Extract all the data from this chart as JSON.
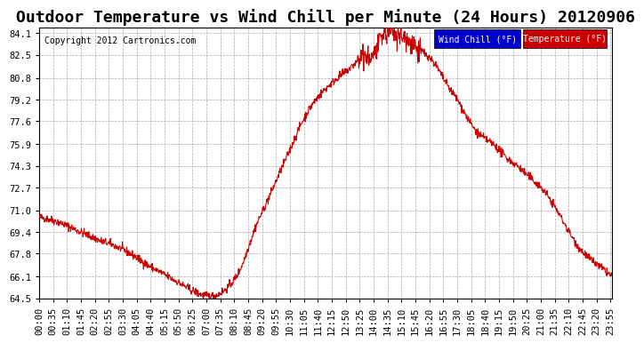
{
  "title": "Outdoor Temperature vs Wind Chill per Minute (24 Hours) 20120906",
  "copyright_text": "Copyright 2012 Cartronics.com",
  "background_color": "#ffffff",
  "plot_bg_color": "#ffffff",
  "grid_color": "#aaaaaa",
  "line_color": "#cc0000",
  "line_color2": "#cc0000",
  "ylim": [
    64.5,
    84.5
  ],
  "yticks": [
    84.1,
    82.5,
    80.8,
    79.2,
    77.6,
    75.9,
    74.3,
    72.7,
    71.0,
    69.4,
    67.8,
    66.1,
    64.5
  ],
  "legend_wind_chill_bg": "#0000cc",
  "legend_temp_bg": "#cc0000",
  "legend_text_color": "#ffffff",
  "title_fontsize": 13,
  "tick_fontsize": 7.5,
  "num_minutes": 1440
}
